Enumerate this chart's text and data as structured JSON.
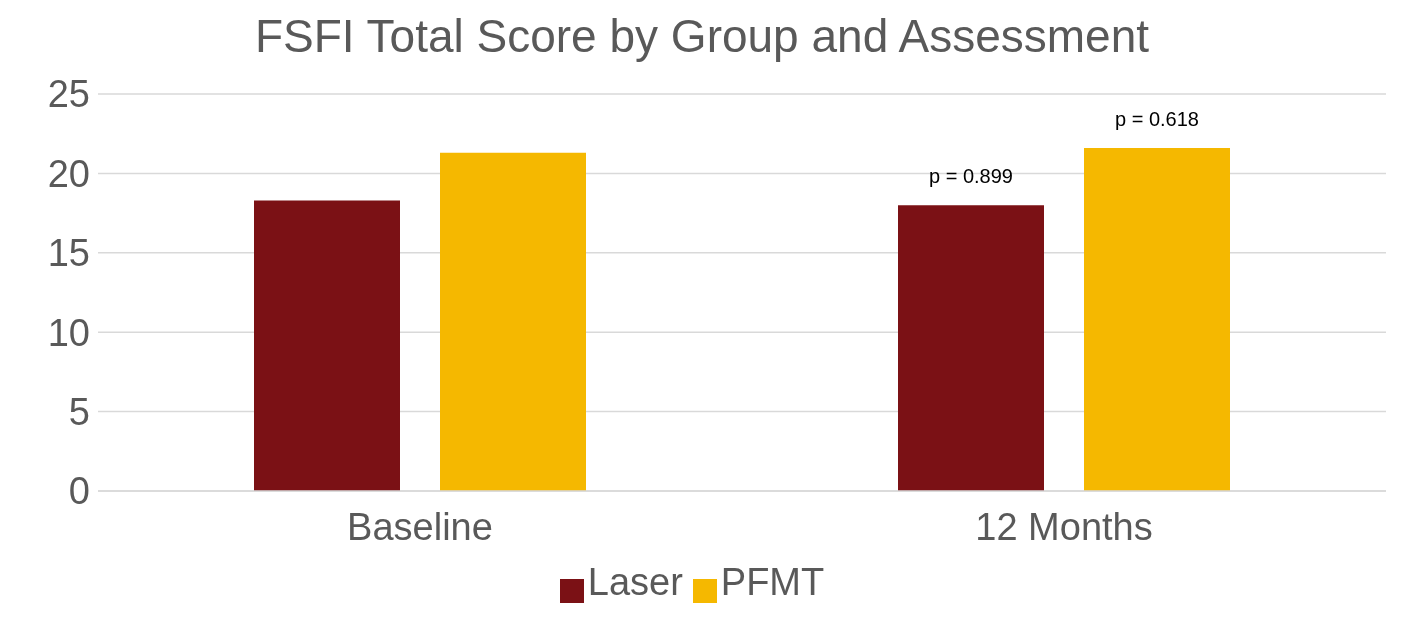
{
  "chart_data": {
    "type": "bar",
    "title": "FSFI Total Score by Group and Assessment",
    "categories": [
      "Baseline",
      "12 Months"
    ],
    "series": [
      {
        "name": "Laser",
        "color": "#7b1115",
        "values": [
          18.3,
          18.0
        ]
      },
      {
        "name": "PFMT",
        "color": "#f5b800",
        "values": [
          21.3,
          21.6
        ]
      }
    ],
    "ylim": [
      0,
      25
    ],
    "yticks": [
      0,
      5,
      10,
      15,
      20,
      25
    ],
    "grid": "y",
    "legend": "bottom",
    "annotations": [
      "p = 0.899",
      "p = 0.618"
    ]
  }
}
